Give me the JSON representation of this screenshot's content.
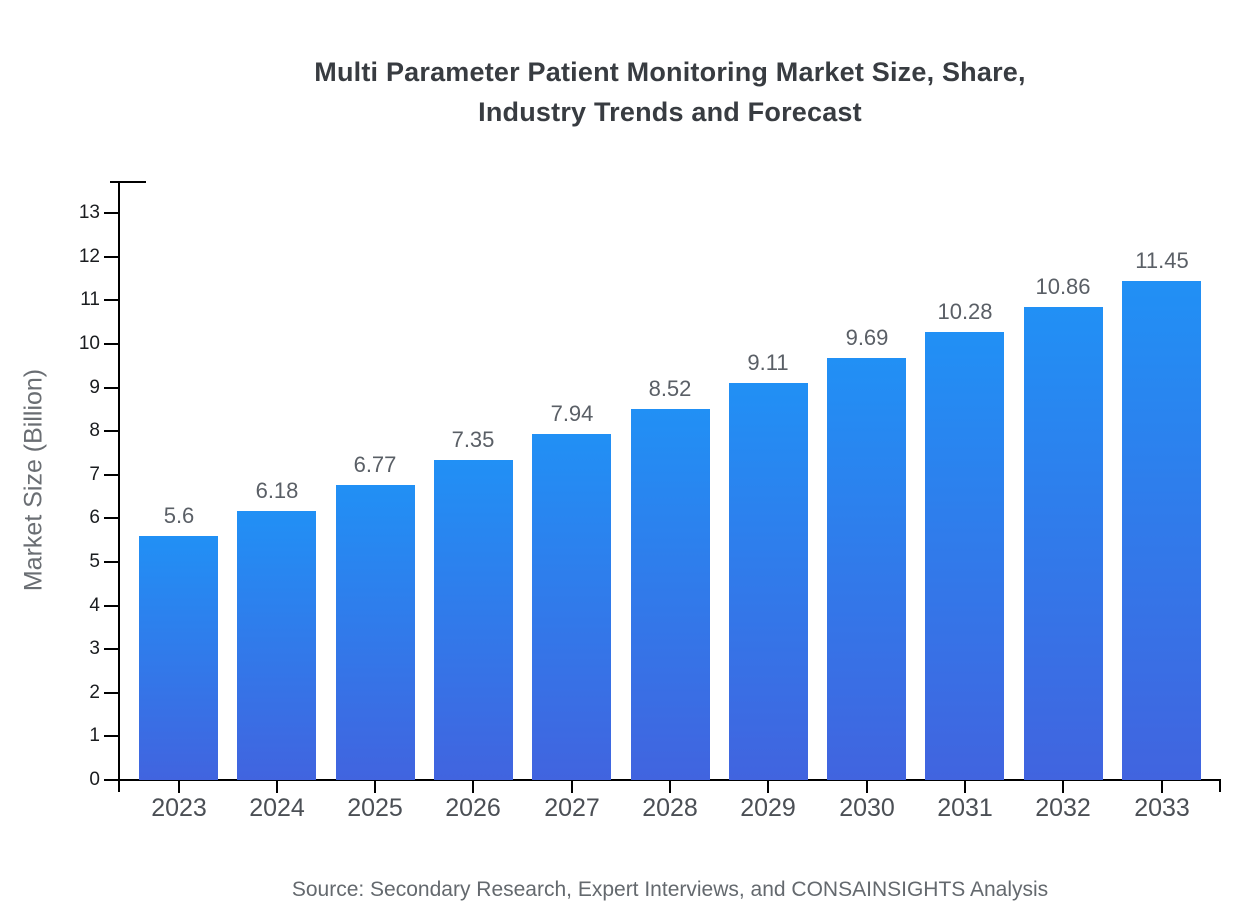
{
  "title_lines": [
    "Multi Parameter Patient Monitoring Market Size, Share,",
    "Industry Trends and Forecast"
  ],
  "source_note": "Source: Secondary Research, Expert Interviews, and CONSAINSIGHTS Analysis",
  "chart_data": {
    "type": "bar",
    "title": "Multi Parameter Patient Monitoring Market Size, Share, Industry Trends and Forecast",
    "categories": [
      "2023",
      "2024",
      "2025",
      "2026",
      "2027",
      "2028",
      "2029",
      "2030",
      "2031",
      "2032",
      "2033"
    ],
    "values": [
      5.6,
      6.18,
      6.77,
      7.35,
      7.94,
      8.52,
      9.11,
      9.69,
      10.28,
      10.86,
      11.45
    ],
    "value_labels": [
      "5.6",
      "6.18",
      "6.77",
      "7.35",
      "7.94",
      "8.52",
      "9.11",
      "9.69",
      "10.28",
      "10.86",
      "11.45"
    ],
    "xlabel": "",
    "ylabel": "Market Size (Billion)",
    "ylim": [
      0,
      13
    ],
    "yticks": [
      0,
      1,
      2,
      3,
      4,
      5,
      6,
      7,
      8,
      9,
      10,
      11,
      12,
      13
    ],
    "grid": false,
    "legend": false,
    "source": "Source: Secondary Research, Expert Interviews, and CONSAINSIGHTS Analysis"
  },
  "colors": {
    "bar_gradient_top": "#2190f5",
    "bar_gradient_bottom": "#4164df",
    "axis": "#000000",
    "title_text": "#383c41",
    "y_tick_text": "#1a1c1f",
    "x_tick_text": "#4b4f55",
    "value_label_text": "#5a5f66",
    "muted_text": "#64696e"
  }
}
